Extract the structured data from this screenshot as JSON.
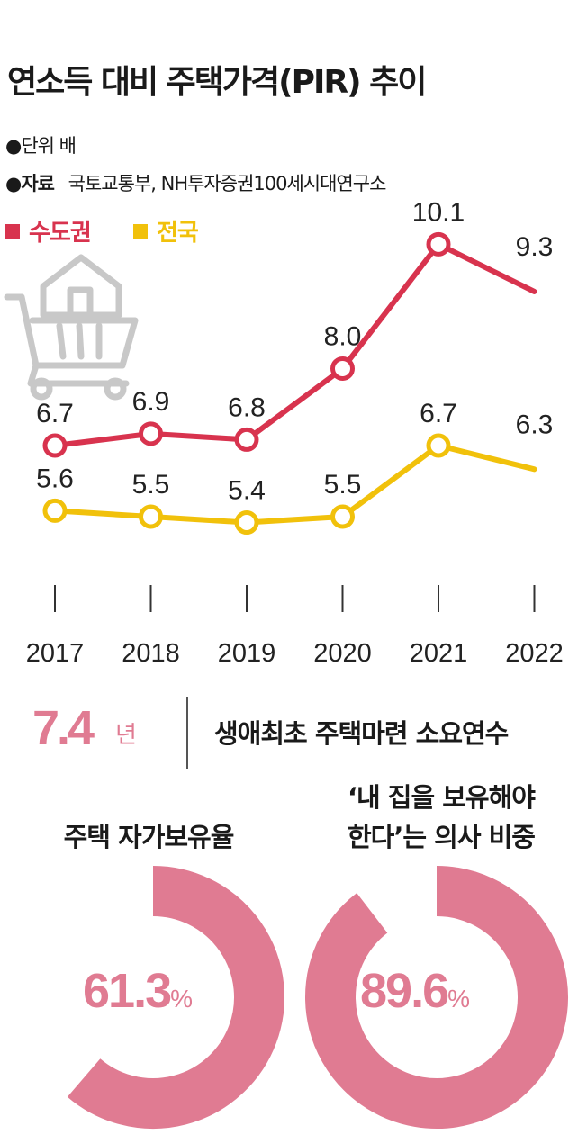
{
  "header": {
    "title": "연소득 대비 주택가격(PIR) 추이",
    "unit": "●단위 배",
    "source_label": "●자료",
    "source_text": "국토교통부, NH투자증권100세시대연구소"
  },
  "legend": {
    "capital": "수도권",
    "national": "전국"
  },
  "colors": {
    "capital": "#d8334e",
    "national": "#f1c10b",
    "accent": "#e07b92",
    "icon": "#c8c8c8"
  },
  "chart_data": {
    "type": "line",
    "title": "연소득 대비 주택가격(PIR) 추이",
    "ylabel": "배",
    "categories": [
      "2017",
      "2018",
      "2019",
      "2020",
      "2021",
      "2022"
    ],
    "series": [
      {
        "name": "수도권",
        "values": [
          6.7,
          6.9,
          6.8,
          8.0,
          10.1,
          9.3
        ],
        "labels": [
          "6.7",
          "6.9",
          "6.8",
          "8.0",
          "10.1",
          "9.3"
        ]
      },
      {
        "name": "전국",
        "values": [
          5.6,
          5.5,
          5.4,
          5.5,
          6.7,
          6.3
        ],
        "labels": [
          "5.6",
          "5.5",
          "5.4",
          "5.5",
          "6.7",
          "6.3"
        ]
      }
    ],
    "ylim": [
      4.8,
      10.5
    ]
  },
  "stat": {
    "value": "7.4",
    "unit": "년",
    "label": "생애최초 주택마련 소요연수"
  },
  "donuts": [
    {
      "title_line1": "주택 자가보유율",
      "title_line2": "",
      "value": 61.3,
      "value_text": "61.3",
      "pct": "%"
    },
    {
      "title_line1": "‘내 집을 보유해야",
      "title_line2": "한다’는 의사 비중",
      "value": 89.6,
      "value_text": "89.6",
      "pct": "%"
    }
  ]
}
